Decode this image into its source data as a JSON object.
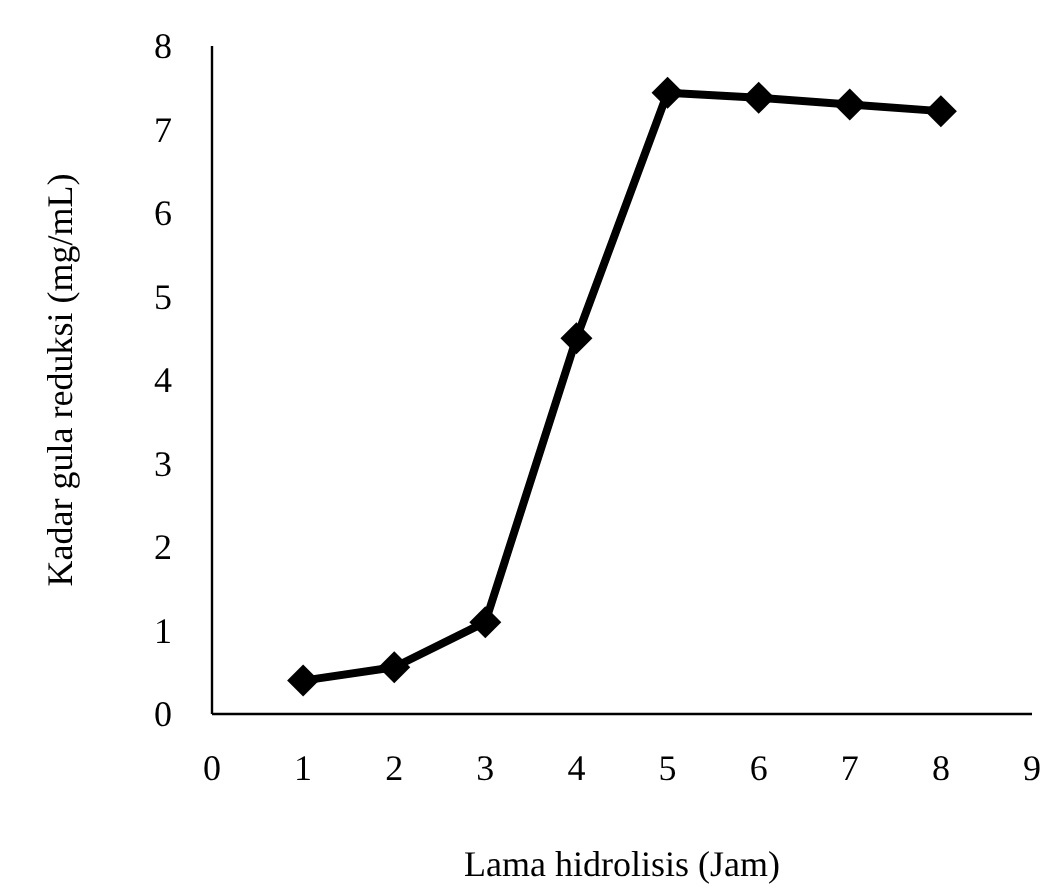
{
  "chart_data": {
    "type": "line",
    "xlabel": "Lama hidrolisis (Jam)",
    "ylabel": "Kadar gula reduksi (mg/mL)",
    "x": [
      1,
      2,
      3,
      4,
      5,
      6,
      7,
      8
    ],
    "series": [
      {
        "color": "#000000",
        "values": [
          0.4,
          0.56,
          1.1,
          4.5,
          7.44,
          7.38,
          7.3,
          7.22
        ]
      }
    ],
    "xlim": [
      0,
      9
    ],
    "xticks": [
      0,
      1,
      2,
      3,
      4,
      5,
      6,
      7,
      8,
      9
    ],
    "ylim": [
      0,
      8
    ],
    "yticks": [
      0,
      1,
      2,
      3,
      4,
      5,
      6,
      7,
      8
    ],
    "grid": false,
    "marker": "diamond",
    "line_style": "solid"
  }
}
